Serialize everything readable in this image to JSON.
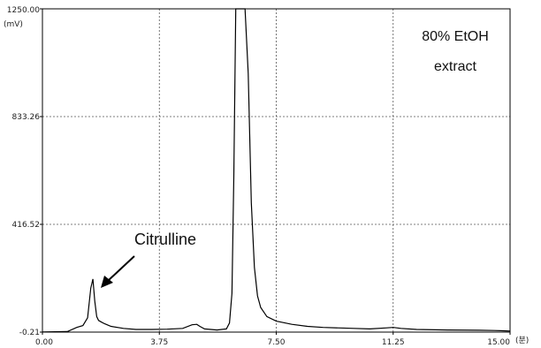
{
  "chart_data": {
    "type": "line",
    "title": "",
    "y_unit": "(mV)",
    "x_unit": "(분)",
    "xlim": [
      0,
      15
    ],
    "ylim": [
      -0.21,
      1250
    ],
    "x_ticks": [
      0,
      3.75,
      7.5,
      11.25,
      15
    ],
    "x_tick_labels": [
      "0.00",
      "3.75",
      "7.50",
      "11.25",
      "15.00"
    ],
    "y_ticks": [
      -0.21,
      416.52,
      833.26,
      1250
    ],
    "y_tick_labels": [
      "-0.21",
      "416.52",
      "833.26",
      "1250.00"
    ],
    "grid": true,
    "annotations": {
      "sample_line1": "80% EtOH",
      "sample_line2": "extract",
      "peak_label": "Citrulline"
    },
    "series": [
      {
        "x": [
          0.0,
          0.8,
          1.1,
          1.3,
          1.45,
          1.55,
          1.62,
          1.68,
          1.74,
          1.8,
          1.9,
          2.0,
          2.2,
          2.6,
          3.0,
          3.5,
          4.0,
          4.5,
          4.8,
          4.95,
          5.05,
          5.2,
          5.6,
          5.9,
          6.0,
          6.08,
          6.14,
          6.2,
          6.3,
          6.5,
          6.6,
          6.7,
          6.8,
          6.9,
          7.0,
          7.2,
          7.5,
          8.0,
          8.5,
          9.0,
          10.0,
          10.5,
          11.0,
          11.25,
          11.5,
          12.0,
          13.0,
          14.0,
          14.5,
          14.8,
          15.0
        ],
        "y": [
          0,
          2,
          18,
          25,
          55,
          170,
          205,
          120,
          60,
          45,
          38,
          32,
          22,
          14,
          10,
          10,
          11,
          14,
          28,
          30,
          22,
          12,
          8,
          12,
          35,
          150,
          600,
          1250,
          1250,
          1250,
          1000,
          500,
          250,
          140,
          95,
          60,
          42,
          30,
          22,
          18,
          14,
          12,
          16,
          18,
          14,
          10,
          8,
          7,
          6,
          5,
          4
        ]
      }
    ]
  }
}
